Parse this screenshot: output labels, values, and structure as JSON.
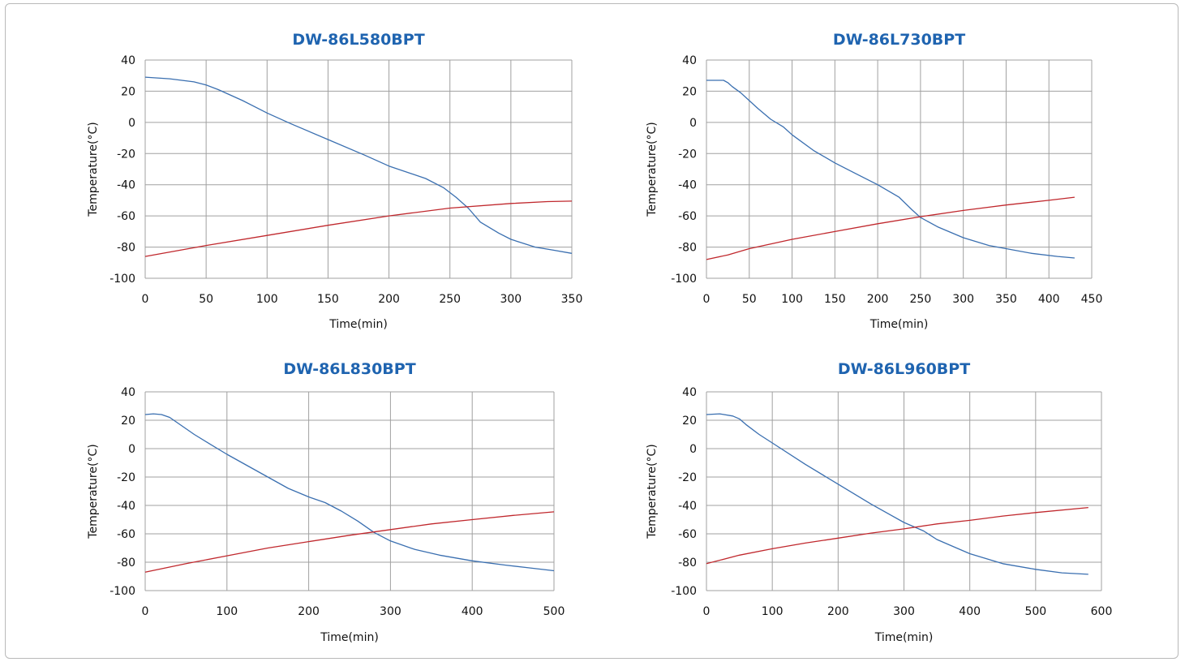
{
  "chart_data": [
    {
      "type": "line",
      "title": "DW-86L580BPT",
      "xlabel": "Time(min)",
      "ylabel": "Temperature(°C)",
      "xlim": [
        0,
        350
      ],
      "ylim": [
        -100,
        40
      ],
      "xticks": [
        0,
        50,
        100,
        150,
        200,
        250,
        300,
        350
      ],
      "yticks": [
        40,
        20,
        0,
        -20,
        -40,
        -60,
        -80,
        -100
      ],
      "grid": true,
      "series": [
        {
          "color": "#3a6fb0",
          "x": [
            0,
            20,
            40,
            50,
            60,
            80,
            100,
            120,
            150,
            180,
            200,
            230,
            245,
            255,
            265,
            275,
            290,
            300,
            320,
            335,
            350
          ],
          "y": [
            29,
            28,
            26,
            24,
            21,
            14,
            6,
            -1,
            -11,
            -21,
            -28,
            -36,
            -42,
            -48,
            -55,
            -64,
            -71,
            -75,
            -80,
            -82,
            -84
          ]
        },
        {
          "color": "#c0282d",
          "x": [
            0,
            50,
            100,
            150,
            200,
            250,
            300,
            330,
            350
          ],
          "y": [
            -86,
            -79,
            -72.5,
            -66,
            -60,
            -55,
            -52,
            -50.8,
            -50.5
          ]
        }
      ]
    },
    {
      "type": "line",
      "title": "DW-86L730BPT",
      "xlabel": "Time(min)",
      "ylabel": "Temperature(°C)",
      "xlim": [
        0,
        450
      ],
      "ylim": [
        -100,
        40
      ],
      "xticks": [
        0,
        50,
        100,
        150,
        200,
        250,
        300,
        350,
        400,
        450
      ],
      "yticks": [
        40,
        20,
        0,
        -20,
        -40,
        -60,
        -80,
        -100
      ],
      "grid": true,
      "series": [
        {
          "color": "#3a6fb0",
          "x": [
            0,
            10,
            20,
            25,
            30,
            40,
            50,
            60,
            75,
            90,
            100,
            125,
            150,
            175,
            200,
            225,
            240,
            250,
            270,
            300,
            330,
            350,
            380,
            410,
            430
          ],
          "y": [
            27,
            27,
            27,
            25.5,
            23,
            19,
            14,
            9,
            2,
            -3,
            -8,
            -18,
            -26,
            -33,
            -40,
            -48,
            -56,
            -61,
            -67,
            -74,
            -79,
            -81,
            -84,
            -86,
            -87
          ]
        },
        {
          "color": "#c0282d",
          "x": [
            0,
            25,
            50,
            100,
            150,
            200,
            250,
            300,
            350,
            400,
            430
          ],
          "y": [
            -88,
            -85,
            -81,
            -75,
            -70,
            -65,
            -60.5,
            -56.5,
            -53,
            -50,
            -48
          ]
        }
      ]
    },
    {
      "type": "line",
      "title": "DW-86L830BPT",
      "xlabel": "Time(min)",
      "ylabel": "Temperature(°C)",
      "xlim": [
        0,
        500
      ],
      "ylim": [
        -100,
        40
      ],
      "xticks": [
        0,
        100,
        200,
        300,
        400,
        500
      ],
      "yticks": [
        40,
        20,
        0,
        -20,
        -40,
        -60,
        -80,
        -100
      ],
      "grid": true,
      "series": [
        {
          "color": "#3a6fb0",
          "x": [
            0,
            10,
            20,
            30,
            40,
            60,
            80,
            100,
            125,
            150,
            175,
            200,
            220,
            240,
            260,
            280,
            300,
            330,
            360,
            400,
            440,
            470,
            500
          ],
          "y": [
            24,
            24.5,
            24,
            22,
            18,
            10,
            3,
            -4,
            -12,
            -20,
            -28,
            -34,
            -38,
            -44,
            -51,
            -59,
            -65,
            -71,
            -75,
            -79,
            -82,
            -84,
            -86
          ]
        },
        {
          "color": "#c0282d",
          "x": [
            0,
            50,
            100,
            150,
            200,
            250,
            300,
            350,
            400,
            450,
            500
          ],
          "y": [
            -87,
            -81,
            -75.5,
            -70,
            -65.5,
            -61,
            -57,
            -53,
            -50,
            -47,
            -44.5
          ]
        }
      ]
    },
    {
      "type": "line",
      "title": "DW-86L960BPT",
      "xlabel": "Time(min)",
      "ylabel": "Temperature(°C)",
      "xlim": [
        0,
        600
      ],
      "ylim": [
        -100,
        40
      ],
      "xticks": [
        0,
        100,
        200,
        300,
        400,
        500,
        600
      ],
      "yticks": [
        40,
        20,
        0,
        -20,
        -40,
        -60,
        -80,
        -100
      ],
      "grid": true,
      "series": [
        {
          "color": "#3a6fb0",
          "x": [
            0,
            20,
            40,
            50,
            60,
            80,
            100,
            150,
            200,
            250,
            300,
            320,
            330,
            350,
            380,
            400,
            450,
            500,
            540,
            580
          ],
          "y": [
            24,
            24.5,
            23,
            21,
            17,
            10,
            4,
            -11,
            -25,
            -39,
            -52,
            -56,
            -58,
            -64,
            -70,
            -74,
            -81,
            -85,
            -87.5,
            -88.5
          ]
        },
        {
          "color": "#c0282d",
          "x": [
            0,
            50,
            100,
            150,
            200,
            250,
            300,
            350,
            400,
            450,
            500,
            580
          ],
          "y": [
            -81,
            -75,
            -70.5,
            -66.5,
            -63,
            -59.5,
            -56.5,
            -53,
            -50.5,
            -47.5,
            -45,
            -41.5
          ]
        }
      ]
    }
  ]
}
